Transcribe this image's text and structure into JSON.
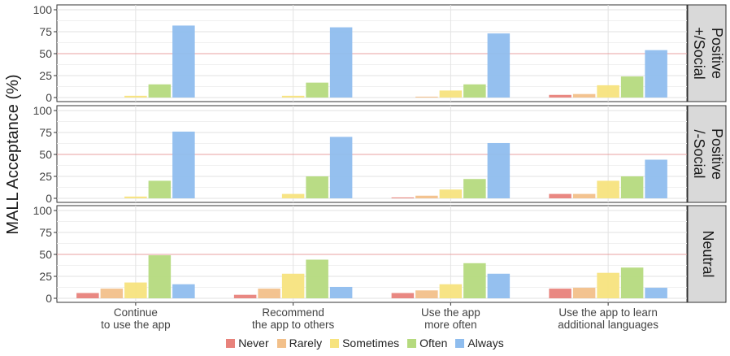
{
  "chart_data": {
    "type": "bar",
    "ylabel": "MALL Acceptance (%)",
    "xlabel": "",
    "ylim": [
      0,
      100
    ],
    "yticks": [
      0,
      25,
      50,
      75,
      100
    ],
    "reference_line": 50,
    "grid": true,
    "legend_position": "bottom",
    "categories": [
      [
        "Continue",
        "to use the app"
      ],
      [
        "Recommend",
        "the app to others"
      ],
      [
        "Use the app",
        "more often"
      ],
      [
        "Use the app to learn",
        "additional languages"
      ]
    ],
    "series_names": [
      "Never",
      "Rarely",
      "Sometimes",
      "Often",
      "Always"
    ],
    "series_colors": [
      "#E8827B",
      "#F2C08A",
      "#F7E37E",
      "#B5DA7E",
      "#8FBDEE"
    ],
    "panels": [
      {
        "label": [
          "Positive",
          "+/Social"
        ],
        "values": [
          [
            0,
            0,
            2,
            15,
            82
          ],
          [
            0,
            0,
            2,
            17,
            80
          ],
          [
            0,
            1,
            8,
            15,
            73
          ],
          [
            3,
            4,
            14,
            24,
            54
          ]
        ]
      },
      {
        "label": [
          "Positive",
          "/-Social"
        ],
        "values": [
          [
            0,
            0,
            2,
            20,
            76
          ],
          [
            0,
            0,
            5,
            25,
            70
          ],
          [
            1,
            3,
            10,
            22,
            63
          ],
          [
            5,
            5,
            20,
            25,
            44
          ]
        ]
      },
      {
        "label": [
          "Neutral"
        ],
        "values": [
          [
            6,
            11,
            18,
            49,
            16
          ],
          [
            4,
            11,
            28,
            44,
            13
          ],
          [
            6,
            9,
            16,
            40,
            28
          ],
          [
            11,
            12,
            29,
            35,
            12
          ]
        ]
      }
    ]
  }
}
